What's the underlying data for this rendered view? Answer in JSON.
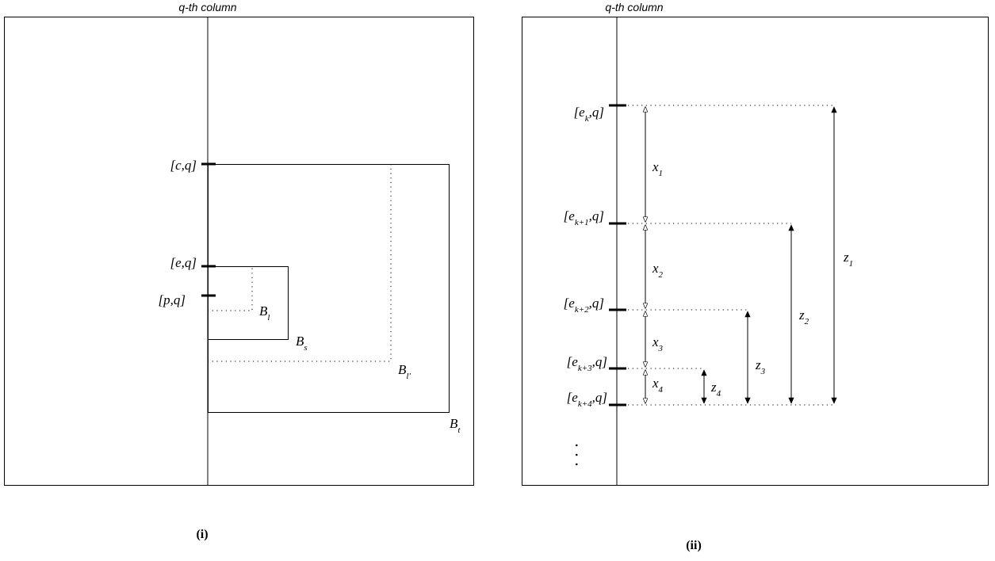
{
  "panel_i": {
    "column_title": "q-th column",
    "caption": "(i)",
    "points": [
      {
        "open": "[",
        "name": "c",
        "sub": "",
        "close": ",q]"
      },
      {
        "open": "[",
        "name": "e",
        "sub": "",
        "close": ",q]"
      },
      {
        "open": "[",
        "name": "p",
        "sub": "",
        "close": ",q]"
      }
    ],
    "blocks": [
      {
        "name": "B",
        "sub": "l"
      },
      {
        "name": "B",
        "sub": "s"
      },
      {
        "name": "B",
        "sub": "l'"
      },
      {
        "name": "B",
        "sub": "t"
      }
    ]
  },
  "panel_ii": {
    "column_title": "q-th column",
    "caption": "(ii)",
    "points": [
      {
        "open": "[e",
        "sub": "k",
        "close": ",q]"
      },
      {
        "open": "[e",
        "sub": "k+1",
        "close": ",q]"
      },
      {
        "open": "[e",
        "sub": "k+2",
        "close": ",q]"
      },
      {
        "open": "[e",
        "sub": "k+3",
        "close": ",q]"
      },
      {
        "open": "[e",
        "sub": "k+4",
        "close": ",q]"
      }
    ],
    "gaps": [
      {
        "name": "x",
        "sub": "1"
      },
      {
        "name": "x",
        "sub": "2"
      },
      {
        "name": "x",
        "sub": "3"
      },
      {
        "name": "x",
        "sub": "4"
      }
    ],
    "spans": [
      {
        "name": "z",
        "sub": "1"
      },
      {
        "name": "z",
        "sub": "2"
      },
      {
        "name": "z",
        "sub": "3"
      },
      {
        "name": "z",
        "sub": "4"
      }
    ],
    "continuation": "..."
  }
}
